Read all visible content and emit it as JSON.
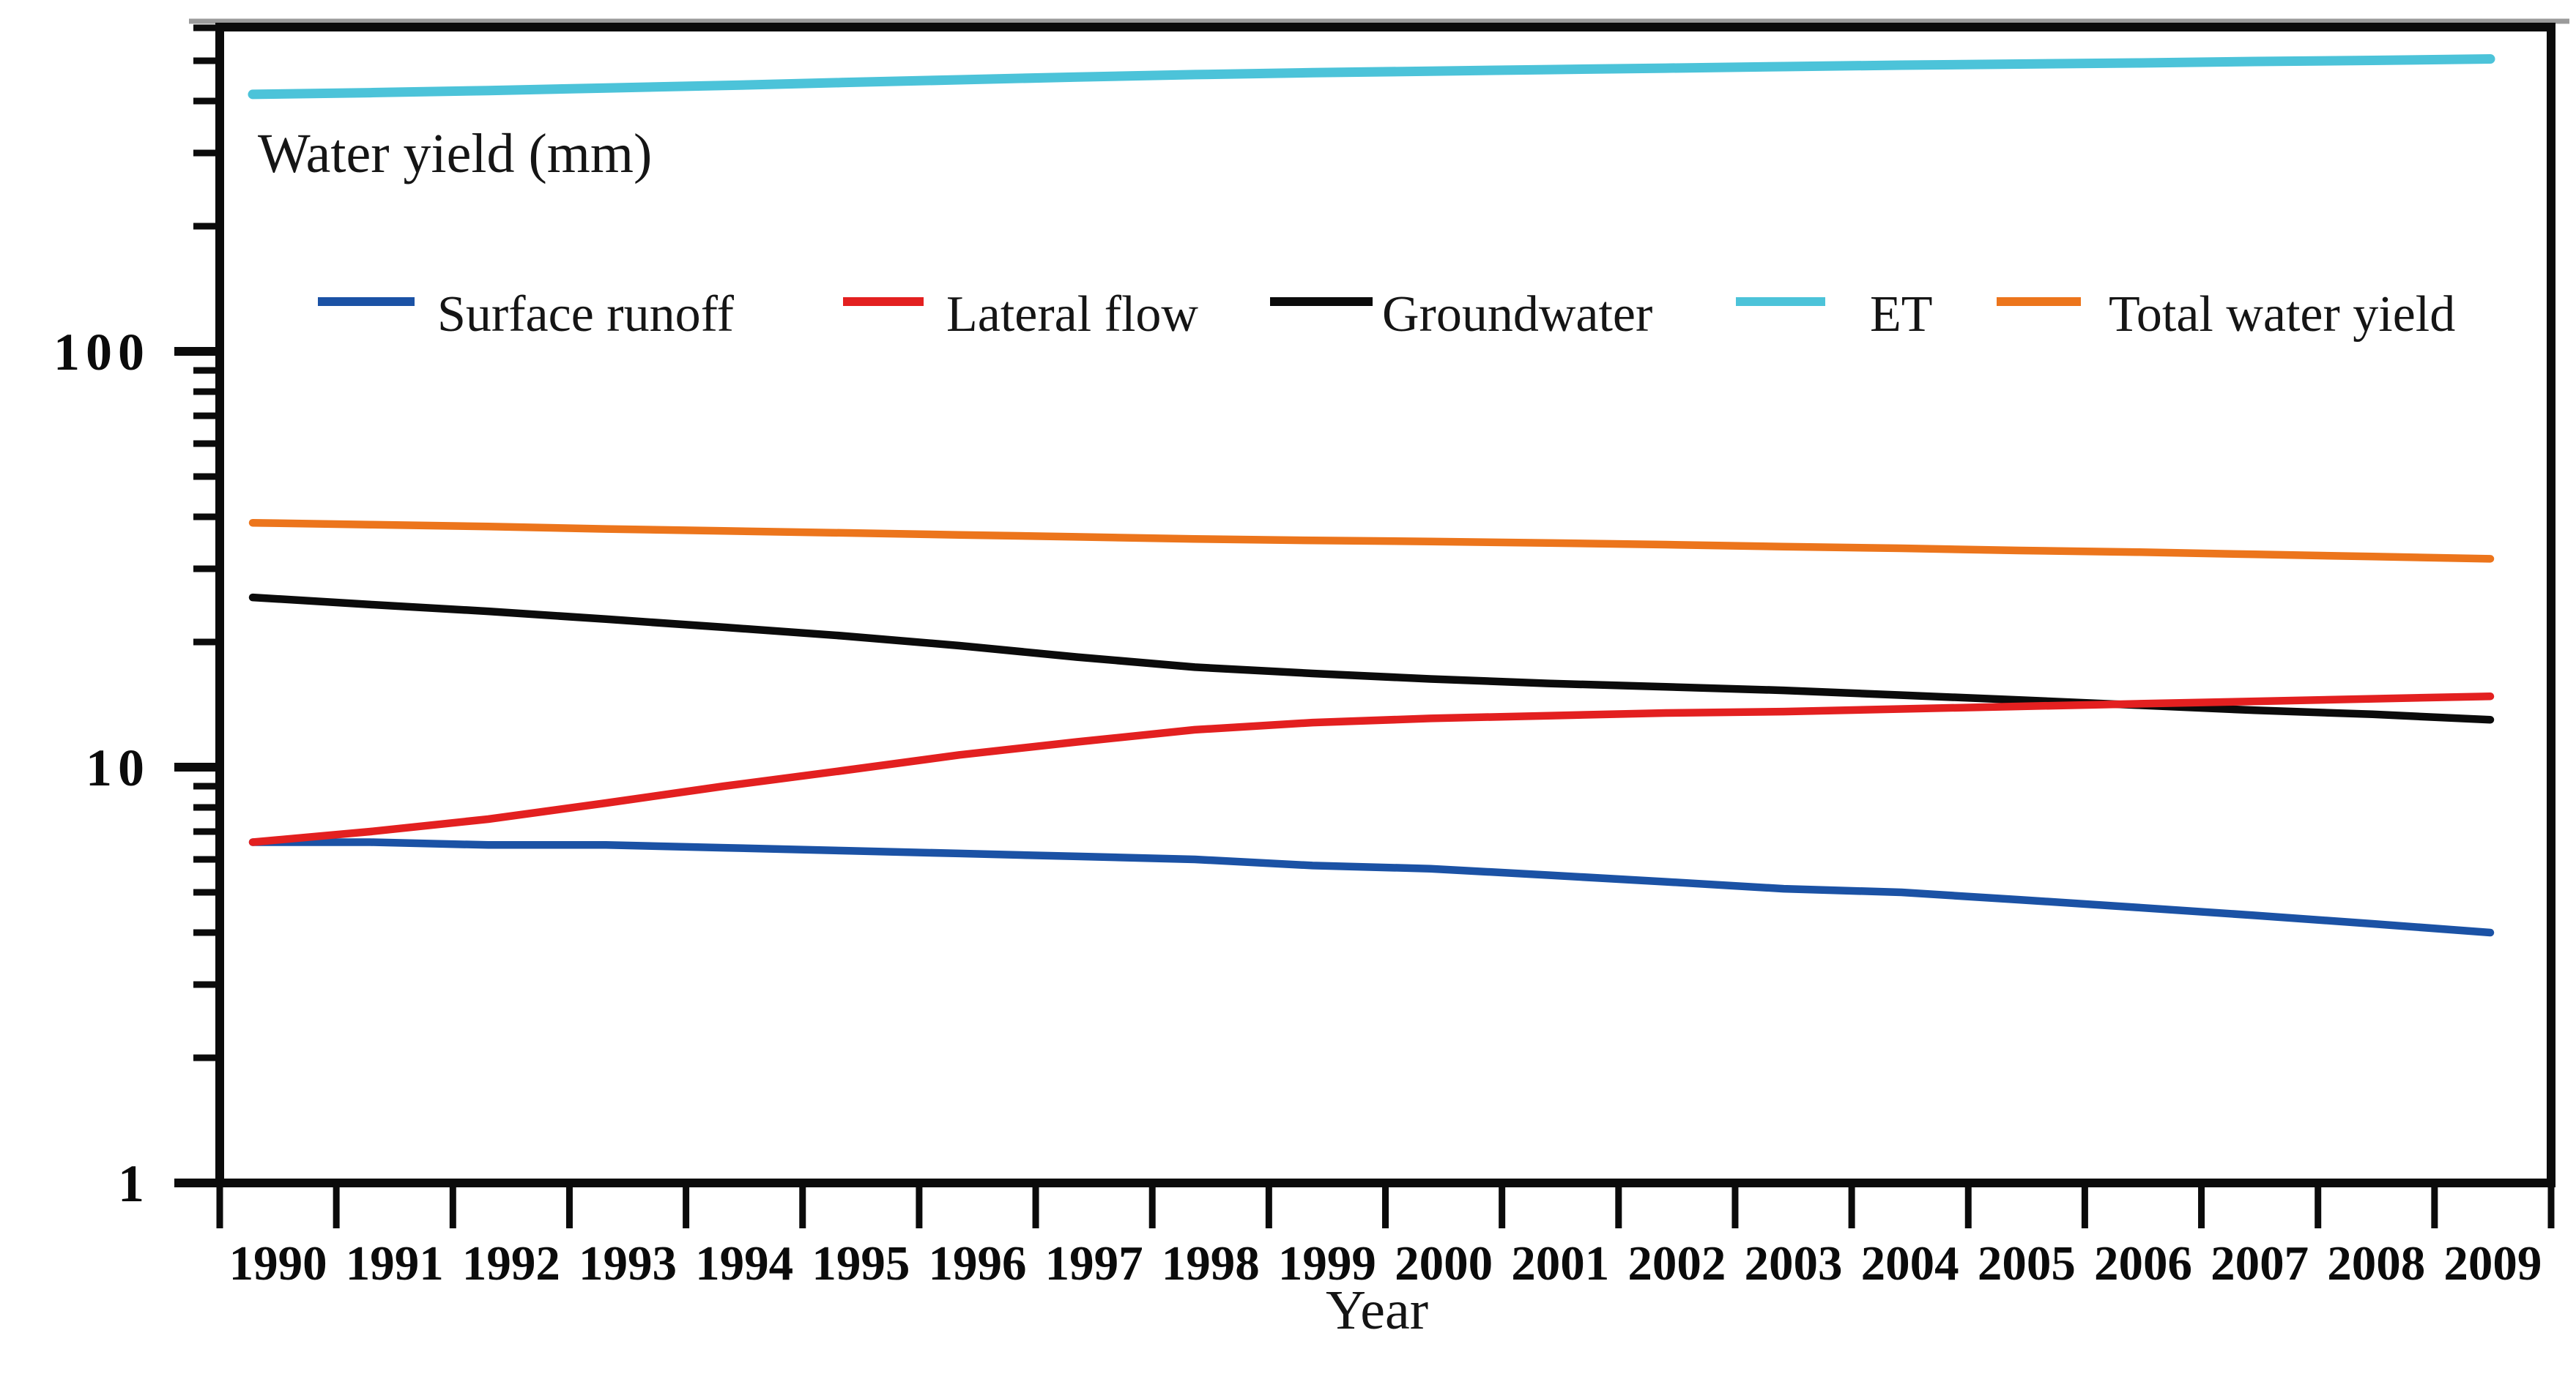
{
  "chart_data": {
    "type": "line",
    "title": "Water yield (mm)",
    "xlabel": "Year",
    "ylabel": "",
    "yscale": "log",
    "ylim": [
      1,
      600
    ],
    "ytick_labels": [
      "1",
      "10",
      "100"
    ],
    "ytick_values": [
      1,
      10,
      100
    ],
    "grid": false,
    "legend_position": "top-inside",
    "x": [
      1990,
      1991,
      1992,
      1993,
      1994,
      1995,
      1996,
      1997,
      1998,
      1999,
      2000,
      2001,
      2002,
      2003,
      2004,
      2005,
      2006,
      2007,
      2008,
      2009
    ],
    "series": [
      {
        "name": "Surface runoff",
        "color": "#1b52a5",
        "values": [
          6.6,
          6.6,
          6.5,
          6.5,
          6.4,
          6.3,
          6.2,
          6.1,
          6.0,
          5.8,
          5.7,
          5.5,
          5.3,
          5.1,
          5.0,
          4.8,
          4.6,
          4.4,
          4.2,
          4.0
        ]
      },
      {
        "name": "Lateral flow",
        "color": "#e32020",
        "values": [
          6.6,
          7.0,
          7.5,
          8.2,
          9.0,
          9.8,
          10.7,
          11.5,
          12.3,
          12.8,
          13.1,
          13.3,
          13.5,
          13.6,
          13.8,
          14.0,
          14.2,
          14.4,
          14.6,
          14.8
        ]
      },
      {
        "name": "Groundwater",
        "color": "#0b0b0b",
        "values": [
          25.6,
          24.6,
          23.7,
          22.7,
          21.7,
          20.7,
          19.6,
          18.4,
          17.4,
          16.8,
          16.3,
          15.9,
          15.6,
          15.3,
          14.9,
          14.5,
          14.1,
          13.7,
          13.4,
          13.0
        ]
      },
      {
        "name": "ET",
        "color": "#4cc3d9",
        "values": [
          415,
          419,
          424,
          430,
          436,
          443,
          450,
          457,
          463,
          468,
          472,
          476,
          480,
          484,
          488,
          491,
          494,
          498,
          501,
          505
        ]
      },
      {
        "name": "Total water yield",
        "color": "#ec751c",
        "values": [
          38.7,
          38.3,
          37.9,
          37.4,
          37.0,
          36.6,
          36.2,
          35.8,
          35.4,
          35.1,
          34.9,
          34.6,
          34.3,
          33.9,
          33.6,
          33.2,
          32.9,
          32.5,
          32.1,
          31.7
        ]
      }
    ]
  },
  "colors": {
    "axis": "#0b0b0b",
    "background": "#ffffff",
    "top_strip": "#9b9b9b"
  }
}
